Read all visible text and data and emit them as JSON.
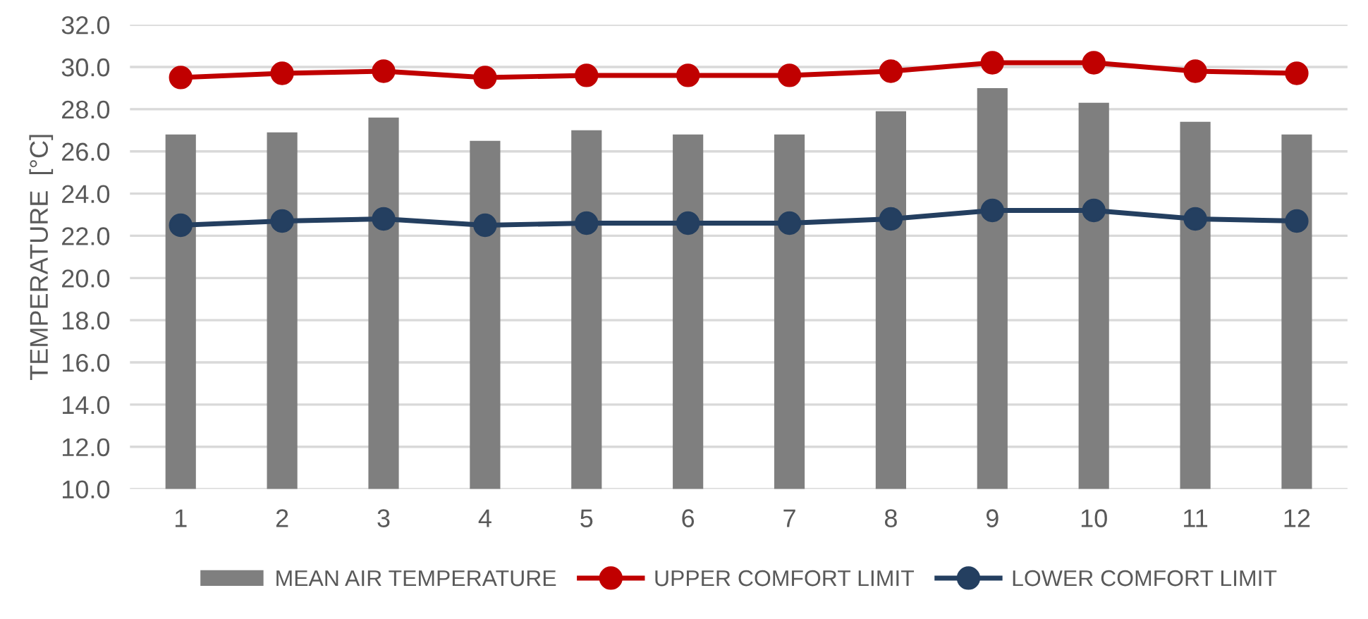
{
  "chart_data": {
    "type": "bar",
    "ylabel": "TEMPERATURE  [°C]",
    "categories": [
      "1",
      "2",
      "3",
      "4",
      "5",
      "6",
      "7",
      "8",
      "9",
      "10",
      "11",
      "12"
    ],
    "series": [
      {
        "name": "MEAN AIR TEMPERATURE",
        "color": "#7f7f7f",
        "values": [
          26.8,
          26.9,
          27.6,
          26.5,
          27.0,
          26.8,
          26.8,
          27.9,
          29.0,
          28.3,
          27.4,
          26.8
        ]
      },
      {
        "name": "UPPER COMFORT LIMIT",
        "type": "line",
        "color": "#c00000",
        "marker": "circle",
        "values": [
          29.5,
          29.7,
          29.8,
          29.5,
          29.6,
          29.6,
          29.6,
          29.8,
          30.2,
          30.2,
          29.8,
          29.7
        ]
      },
      {
        "name": "LOWER COMFORT LIMIT",
        "type": "line",
        "color": "#243f60",
        "marker": "circle",
        "values": [
          22.5,
          22.7,
          22.8,
          22.5,
          22.6,
          22.6,
          22.6,
          22.8,
          23.2,
          23.2,
          22.8,
          22.7
        ]
      }
    ],
    "ylim": [
      10,
      32
    ],
    "yticks": [
      {
        "value": 10,
        "label": "10.0"
      },
      {
        "value": 12,
        "label": "12.0"
      },
      {
        "value": 14,
        "label": "14.0"
      },
      {
        "value": 16,
        "label": "16.0"
      },
      {
        "value": 18,
        "label": "18.0"
      },
      {
        "value": 20,
        "label": "20.0"
      },
      {
        "value": 22,
        "label": "22.0"
      },
      {
        "value": 24,
        "label": "24.0"
      },
      {
        "value": 26,
        "label": "26.0"
      },
      {
        "value": 28,
        "label": "28.0"
      },
      {
        "value": 30,
        "label": "30.0"
      },
      {
        "value": 32,
        "label": "32.0"
      }
    ],
    "grid": "y",
    "legend": "bottom"
  }
}
